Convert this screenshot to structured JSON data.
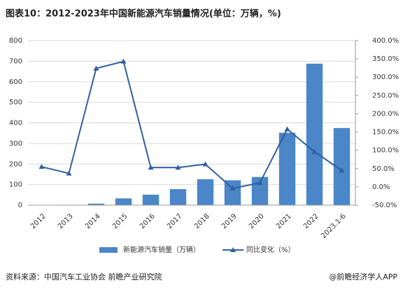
{
  "chart_data": {
    "type": "bar_line",
    "title": "图表10：2012-2023年中国新能源汽车销量情况(单位：万辆，%)",
    "categories": [
      "2012",
      "2013",
      "2014",
      "2015",
      "2016",
      "2017",
      "2018",
      "2019",
      "2020",
      "2021",
      "2022",
      "2023.1-6"
    ],
    "series": [
      {
        "name": "新能源汽车销量（万辆）",
        "type": "bar",
        "color": "#4a86c8",
        "values": [
          1.3,
          1.8,
          7.5,
          33,
          51,
          78,
          126,
          121,
          137,
          352,
          688,
          375
        ]
      },
      {
        "name": "同比变化（%）",
        "type": "line",
        "axis": "y2",
        "color": "#2f5f9f",
        "values": [
          55,
          37,
          324,
          343,
          53,
          53,
          62,
          -4,
          11,
          158,
          96,
          45
        ]
      }
    ],
    "ylim": [
      0,
      800
    ],
    "yticks": [
      0,
      100,
      200,
      300,
      400,
      500,
      600,
      700,
      800
    ],
    "y2lim": [
      -50,
      400
    ],
    "y2ticks": [
      {
        "value": -50,
        "label": "-50.0%"
      },
      {
        "value": 0,
        "label": "0.0%"
      },
      {
        "value": 50,
        "label": "50.0%"
      },
      {
        "value": 100,
        "label": "100.0%"
      },
      {
        "value": 150,
        "label": "150.0%"
      },
      {
        "value": 200,
        "label": "200.0%"
      },
      {
        "value": 250,
        "label": "250.0%"
      },
      {
        "value": 300,
        "label": "300.0%"
      },
      {
        "value": 350,
        "label": "350.0%"
      },
      {
        "value": 400,
        "label": "400.0%"
      }
    ],
    "grid": true,
    "legend": "bottom",
    "source": "资料来源：中国汽车工业协会 前瞻产业研究院",
    "credit": "@前瞻经济学人APP"
  }
}
